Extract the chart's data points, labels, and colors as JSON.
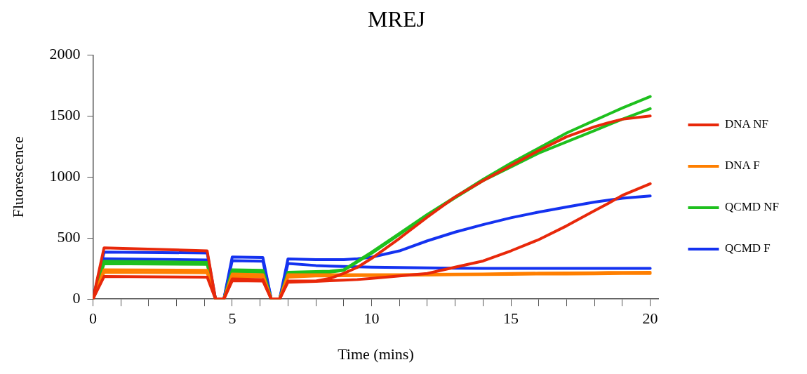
{
  "chart_data": {
    "type": "line",
    "title": "MREJ",
    "xlabel": "Time (mins)",
    "ylabel": "Fluorescence",
    "marker": "none",
    "line_style": "solid",
    "grid": false,
    "legend": "right",
    "x": [
      0,
      0.4,
      4.1,
      4.4,
      4.7,
      5,
      6.1,
      6.4,
      6.7,
      7,
      8,
      8.5,
      9,
      9.5,
      10,
      11,
      12,
      13,
      14,
      15,
      16,
      17,
      18,
      18.5,
      19,
      20
    ],
    "xlim": [
      0,
      20.3
    ],
    "ylim": [
      0,
      2000
    ],
    "yticks": [
      0,
      500,
      1000,
      1500,
      2000
    ],
    "xticks": [
      0,
      {
        "value": 1,
        "label": null
      },
      {
        "value": 2,
        "label": null
      },
      {
        "value": 3,
        "label": null
      },
      {
        "value": 4,
        "label": null
      },
      5,
      {
        "value": 6,
        "label": null
      },
      {
        "value": 7,
        "label": null
      },
      {
        "value": 8,
        "label": null
      },
      {
        "value": 9,
        "label": null
      },
      10,
      {
        "value": 11,
        "label": null
      },
      {
        "value": 12,
        "label": null
      },
      {
        "value": 13,
        "label": null
      },
      {
        "value": 14,
        "label": null
      },
      15,
      {
        "value": 16,
        "label": null
      },
      {
        "value": 17,
        "label": null
      },
      {
        "value": 18,
        "label": null
      },
      {
        "value": 19,
        "label": null
      },
      20
    ],
    "series": [
      {
        "name": "DNA NF",
        "color": "#e8280a",
        "values": [
          0,
          420,
          395,
          0,
          0,
          165,
          160,
          0,
          0,
          148,
          148,
          169,
          210,
          261,
          333,
          497,
          672,
          837,
          970,
          1094,
          1217,
          1330,
          1412,
          1445,
          1474,
          1500
        ]
      },
      {
        "color": "#e8280a",
        "values": [
          0,
          185,
          180,
          0,
          0,
          150,
          148,
          0,
          0,
          138,
          145,
          150,
          155,
          160,
          169,
          189,
          210,
          261,
          312,
          395,
          487,
          600,
          724,
          785,
          850,
          945
        ]
      },
      {
        "name": "DNA F",
        "color": "#ff7f00",
        "values": [
          0,
          240,
          235,
          0,
          0,
          205,
          200,
          0,
          0,
          199,
          199,
          199,
          199,
          199,
          199,
          200,
          202,
          204,
          206,
          210,
          212,
          214,
          216,
          218,
          218,
          220
        ]
      },
      {
        "color": "#ff7f00",
        "values": [
          0,
          220,
          215,
          0,
          0,
          185,
          182,
          0,
          0,
          179,
          189,
          190,
          191,
          192,
          193,
          195,
          197,
          199,
          201,
          203,
          205,
          206,
          207,
          208,
          209,
          210
        ]
      },
      {
        "name": "QCMD NF",
        "color": "#1ec01e",
        "values": [
          0,
          310,
          300,
          0,
          0,
          240,
          235,
          0,
          0,
          220,
          225,
          228,
          240,
          312,
          384,
          538,
          693,
          837,
          980,
          1114,
          1237,
          1361,
          1464,
          1515,
          1566,
          1660
        ]
      },
      {
        "color": "#1ec01e",
        "values": [
          0,
          290,
          285,
          0,
          0,
          225,
          220,
          0,
          0,
          210,
          215,
          220,
          235,
          305,
          375,
          530,
          685,
          830,
          970,
          1083,
          1196,
          1288,
          1381,
          1428,
          1474,
          1560
        ]
      },
      {
        "name": "QCMD F",
        "color": "#1432f0",
        "values": [
          0,
          385,
          378,
          0,
          0,
          345,
          340,
          0,
          0,
          329,
          323,
          323,
          323,
          330,
          343,
          395,
          477,
          549,
          610,
          666,
          713,
          754,
          795,
          810,
          826,
          845
        ]
      },
      {
        "color": "#1432f0",
        "values": [
          0,
          330,
          320,
          0,
          0,
          315,
          310,
          0,
          0,
          292,
          275,
          270,
          267,
          264,
          261,
          258,
          255,
          253,
          251,
          251,
          251,
          251,
          251,
          251,
          251,
          251
        ]
      }
    ]
  }
}
